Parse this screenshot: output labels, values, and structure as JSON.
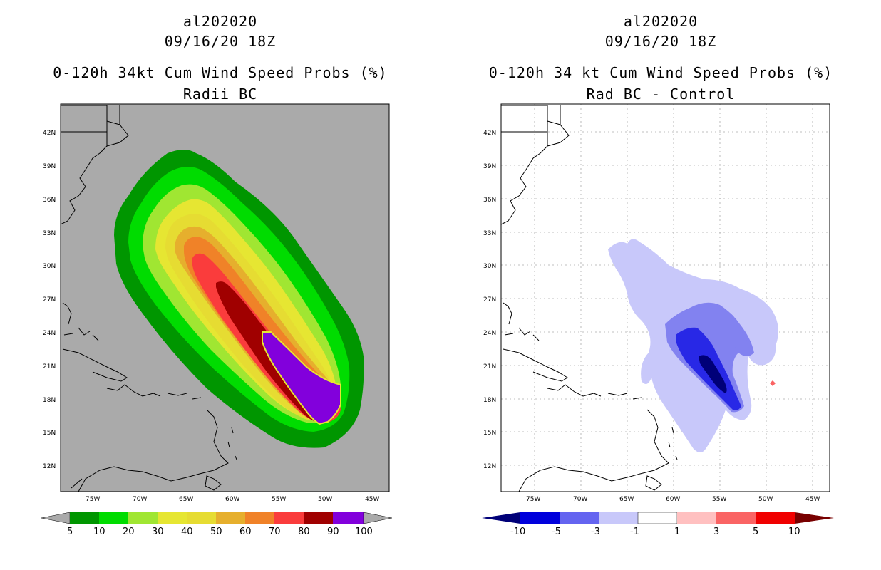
{
  "left": {
    "storm_id": "al202020",
    "date": "09/16/20 18Z",
    "product": "0-120h 34kt Cum Wind Speed Probs (%)",
    "subtitle": "Radii BC",
    "colorbar_labels": [
      "5",
      "10",
      "20",
      "30",
      "40",
      "50",
      "60",
      "70",
      "80",
      "90",
      "100"
    ]
  },
  "right": {
    "storm_id": "al202020",
    "date": "09/16/20 18Z",
    "product": "0-120h 34 kt Cum Wind Speed Probs (%)",
    "subtitle": "Rad BC - Control",
    "colorbar_labels": [
      "-10",
      "-5",
      "-3",
      "-1",
      "1",
      "3",
      "5",
      "10"
    ]
  },
  "lat_labels": [
    "42N",
    "39N",
    "36N",
    "33N",
    "30N",
    "27N",
    "24N",
    "21N",
    "18N",
    "15N",
    "12N"
  ],
  "lon_labels": [
    "75W",
    "70W",
    "65W",
    "60W",
    "55W",
    "50W",
    "45W"
  ],
  "colors": {
    "land_bg": "#aaaaaa",
    "prob_colors": [
      "#009600",
      "#00dc00",
      "#a0e632",
      "#e6e632",
      "#e6dc32",
      "#e6af2d",
      "#f08228",
      "#fa3c3c",
      "#a00000",
      "#8200dc"
    ],
    "diff_colors": [
      "#0000dc",
      "#5a5aeb",
      "#b4b4fa",
      "#ffffff",
      "#ffc0c0",
      "#fa6464",
      "#f00000",
      "#960000"
    ]
  }
}
